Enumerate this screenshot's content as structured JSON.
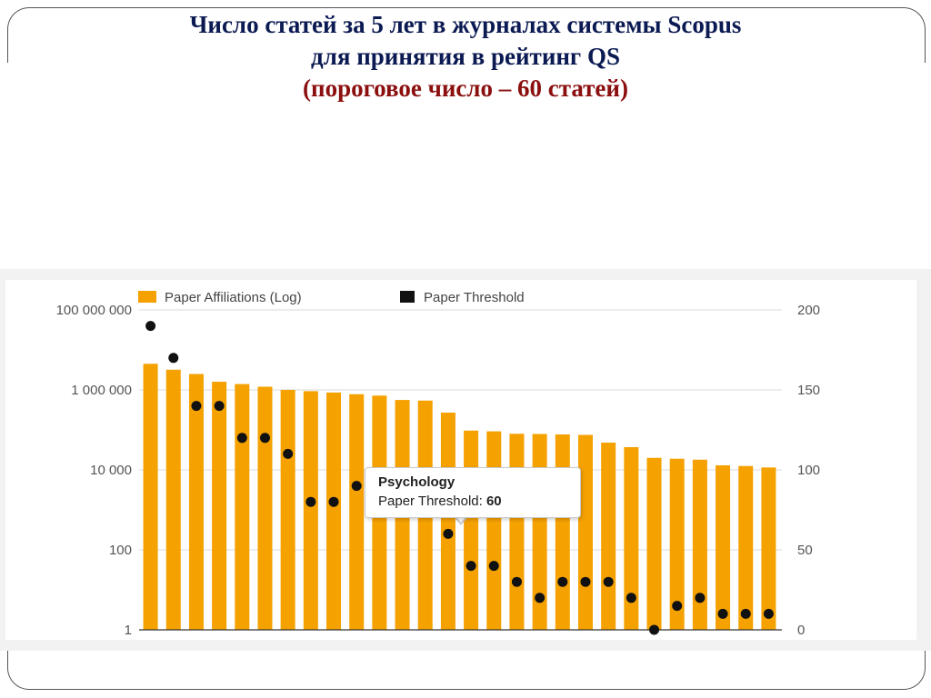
{
  "slide": {
    "title_line1": "Число статей за 5 лет в журналах системы Scopus",
    "title_line2": "для принятия в рейтинг QS",
    "title_line3": "(пороговое число – 60 статей)"
  },
  "colors": {
    "title_navy": "#0b1a52",
    "title_red": "#8b0f0f",
    "bar": "#f5a100",
    "point": "#111111",
    "grid": "#d9d9d9",
    "axis_text": "#555555"
  },
  "tooltip": {
    "category": "Psychology",
    "label": "Paper Threshold:",
    "value": "60"
  },
  "chart_data": {
    "type": "bar",
    "legend_position": "top-left",
    "grid": true,
    "y_left": {
      "scale": "log",
      "ylim": [
        1,
        100000000
      ],
      "tick_values": [
        1,
        100,
        10000,
        1000000,
        100000000
      ],
      "tick_labels": [
        "1",
        "100",
        "10 000",
        "1 000 000",
        "100 000 000"
      ]
    },
    "y_right": {
      "scale": "linear",
      "ylim": [
        0,
        200
      ],
      "tick_values": [
        0,
        50,
        100,
        150,
        200
      ],
      "tick_labels": [
        "0",
        "50",
        "100",
        "150",
        "200"
      ]
    },
    "series": [
      {
        "name": "Paper Affiliations (Log)",
        "kind": "bar",
        "axis": "left",
        "values": [
          4500000,
          3200000,
          2500000,
          1600000,
          1400000,
          1200000,
          1000000,
          930000,
          860000,
          780000,
          720000,
          560000,
          540000,
          270000,
          96000,
          92000,
          80000,
          79000,
          77000,
          75000,
          48000,
          37000,
          20000,
          19000,
          18000,
          13000,
          12500,
          11500
        ]
      },
      {
        "name": "Paper Threshold",
        "kind": "scatter",
        "axis": "right",
        "values": [
          190,
          170,
          140,
          140,
          120,
          120,
          110,
          80,
          80,
          90,
          90,
          90,
          90,
          60,
          40,
          40,
          30,
          20,
          30,
          30,
          30,
          20,
          0,
          15,
          20,
          10,
          10,
          10
        ]
      }
    ]
  }
}
